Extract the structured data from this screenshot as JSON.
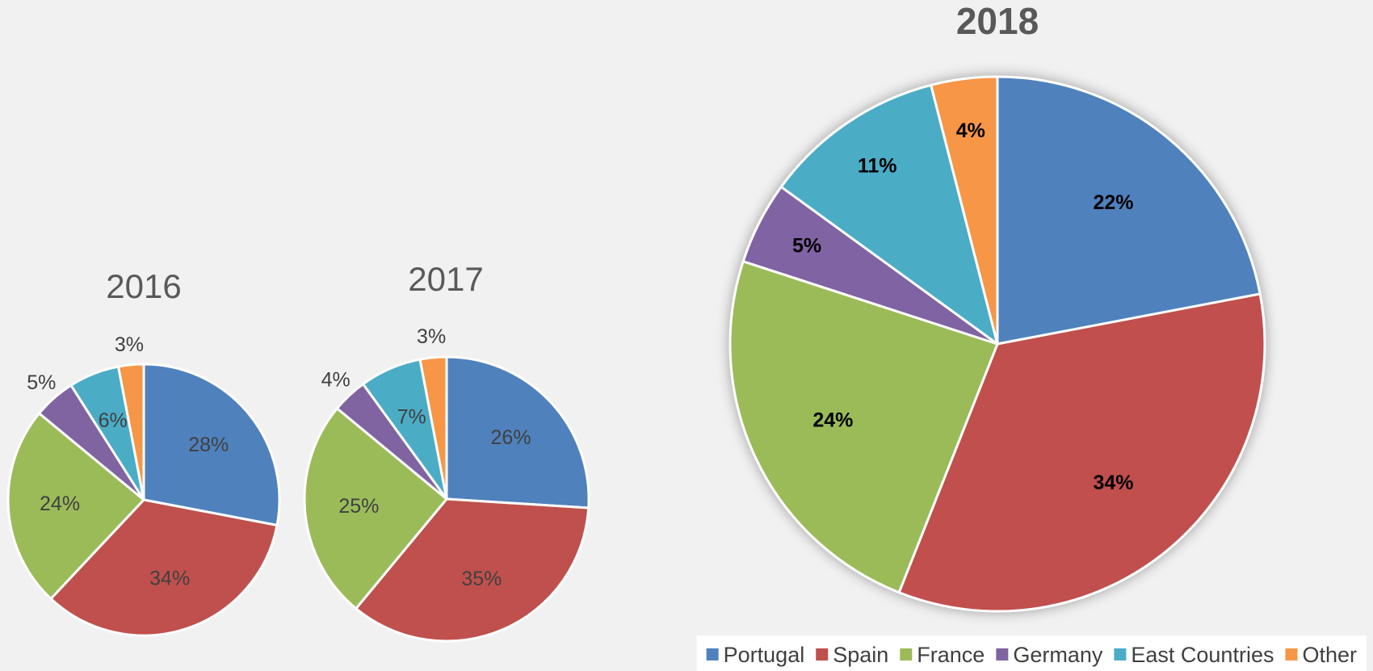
{
  "chart_data": [
    {
      "type": "pie",
      "title": "2016",
      "categories": [
        "Portugal",
        "Spain",
        "France",
        "Germany",
        "East Countries",
        "Other"
      ],
      "values": [
        28,
        34,
        24,
        5,
        6,
        3
      ],
      "value_labels": [
        "28%",
        "34%",
        "24%",
        "5%",
        "6%",
        "3%"
      ],
      "colors": [
        "#4f81bd",
        "#c0504d",
        "#9bbb59",
        "#8064a2",
        "#4bacc6",
        "#f79646"
      ]
    },
    {
      "type": "pie",
      "title": "2017",
      "categories": [
        "Portugal",
        "Spain",
        "France",
        "Germany",
        "East Countries",
        "Other"
      ],
      "values": [
        26,
        35,
        25,
        4,
        7,
        3
      ],
      "value_labels": [
        "26%",
        "35%",
        "25%",
        "4%",
        "7%",
        "3%"
      ],
      "colors": [
        "#4f81bd",
        "#c0504d",
        "#9bbb59",
        "#8064a2",
        "#4bacc6",
        "#f79646"
      ]
    },
    {
      "type": "pie",
      "title": "2018",
      "categories": [
        "Portugal",
        "Spain",
        "France",
        "Germany",
        "East Countries",
        "Other"
      ],
      "values": [
        22,
        34,
        24,
        5,
        11,
        4
      ],
      "value_labels": [
        "22%",
        "34%",
        "24%",
        "5%",
        "11%",
        "4%"
      ],
      "colors": [
        "#4f81bd",
        "#c0504d",
        "#9bbb59",
        "#8064a2",
        "#4bacc6",
        "#f79646"
      ],
      "legend": "bottom-right"
    }
  ]
}
